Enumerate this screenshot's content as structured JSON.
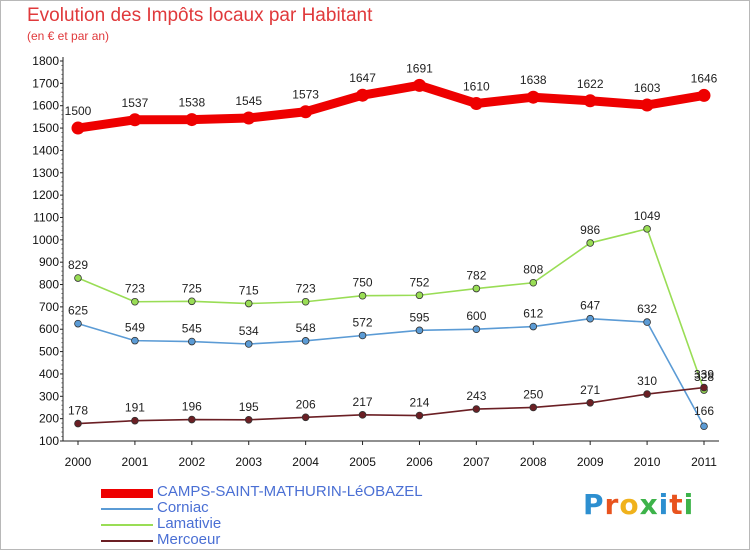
{
  "title": "Evolution des Impôts locaux par Habitant",
  "subtitle": "(en € et par an)",
  "logo": {
    "letters": [
      "P",
      "r",
      "o",
      "x",
      "i",
      "t",
      "i"
    ],
    "colors": [
      "#2d8fd0",
      "#e8531e",
      "#f0b21c",
      "#3db34a",
      "#2d8fd0",
      "#e8531e",
      "#3db34a"
    ]
  },
  "chart_data": {
    "type": "line",
    "x": [
      "2000",
      "2001",
      "2002",
      "2003",
      "2004",
      "2005",
      "2006",
      "2007",
      "2008",
      "2009",
      "2010",
      "2011"
    ],
    "ylim": [
      100,
      1800
    ],
    "yticks": [
      100,
      200,
      300,
      400,
      500,
      600,
      700,
      800,
      900,
      1000,
      1100,
      1200,
      1300,
      1400,
      1500,
      1600,
      1700,
      1800
    ],
    "grid": false,
    "legend": "bottom-left",
    "series": [
      {
        "name": "CAMPS-SAINT-MATHURIN-LéOBAZEL",
        "color": "#ee0000",
        "values": [
          1500,
          1537,
          1538,
          1545,
          1573,
          1647,
          1691,
          1610,
          1638,
          1622,
          1603,
          1646
        ],
        "labels": [
          "1500",
          "1537",
          "1538",
          "1545",
          "1573",
          "1647",
          "1691",
          "1610",
          "1638",
          "1622",
          "1603",
          "1646"
        ]
      },
      {
        "name": "Corniac",
        "color": "#5b9bd5",
        "values": [
          625,
          549,
          545,
          534,
          548,
          572,
          595,
          600,
          612,
          647,
          632,
          166
        ],
        "labels": [
          "625",
          "549",
          "545",
          "534",
          "548",
          "572",
          "595",
          "600",
          "612",
          "647",
          "632",
          "166"
        ]
      },
      {
        "name": "Lamativie",
        "color": "#99dd55",
        "values": [
          829,
          723,
          725,
          715,
          723,
          750,
          752,
          782,
          808,
          986,
          1049,
          328
        ],
        "labels": [
          "829",
          "723",
          "725",
          "715",
          "723",
          "750",
          "752",
          "782",
          "808",
          "986",
          "1049",
          "328"
        ]
      },
      {
        "name": "Mercoeur",
        "color": "#6b1f24",
        "values": [
          178,
          191,
          196,
          195,
          206,
          217,
          214,
          243,
          250,
          271,
          310,
          339
        ],
        "labels": [
          "178",
          "191",
          "196",
          "195",
          "206",
          "217",
          "214",
          "243",
          "250",
          "271",
          "310",
          "339"
        ]
      }
    ]
  }
}
